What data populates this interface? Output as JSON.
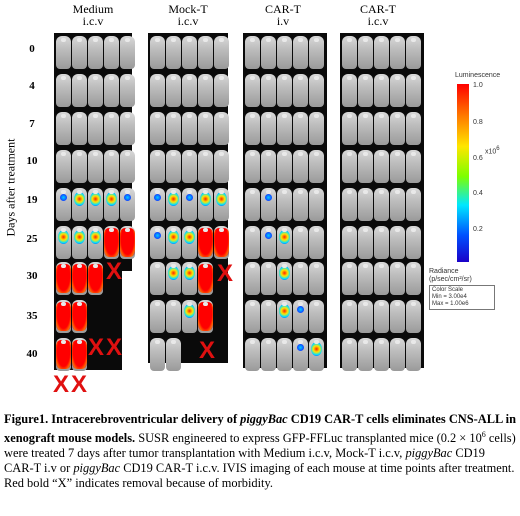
{
  "columns": [
    {
      "line1": "Medium",
      "line2": "i.c.v"
    },
    {
      "line1": "Mock-T",
      "line2": "i.c.v"
    },
    {
      "line1": "CAR-T",
      "line2": "i.v"
    },
    {
      "line1": "CAR-T",
      "line2": "i.c.v"
    }
  ],
  "days": [
    "0",
    "4",
    "7",
    "10",
    "19",
    "25",
    "30",
    "35",
    "40"
  ],
  "y_axis_label": "Days after treatment",
  "removal_marker": "X",
  "legend": {
    "title": "Luminescence",
    "tick_top": "1.0",
    "ticks": [
      "0.8",
      "0.6",
      "0.4",
      "0.2"
    ],
    "multiplier": "x10",
    "multiplier_exp": "6",
    "unit_line1": "Radiance",
    "unit_line2": "(p/sec/cm²/sr)",
    "scale_title": "Color Scale",
    "scale_min": "Min = 3.00e4",
    "scale_max": "Max = 1.00e6"
  },
  "colors": {
    "removal": "#e01010",
    "background": "#ffffff",
    "panel": "#0a0a0a"
  },
  "caption": {
    "title": "Figure1. Intracerebroventricular delivery of ",
    "title_italic": "piggyBac",
    "title_rest": " CD19 CAR-T cells eliminates CNS-ALL in xenograft mouse models.",
    "body_1": " SUSR engineered to express GFP-FFLuc transplanted mice (0.2 × 10",
    "body_sup": "6",
    "body_2": " cells) were treated 7 days after tumor transplantation with Medium i.c.v, Mock-T i.c.v, ",
    "body_italic_1": "piggyBac",
    "body_3": " CD19 CAR-T i.v or ",
    "body_italic_2": "piggyBac",
    "body_4": " CD19 CAR-T i.c.v. IVIS imaging of each mouse at time points after treatment. Red bold “X” indicates removal because of morbidity."
  }
}
